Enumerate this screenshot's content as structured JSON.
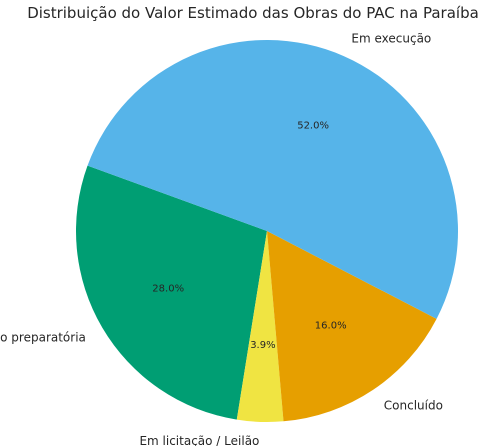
{
  "chart_data": {
    "type": "pie",
    "title": "Distribuição do Valor Estimado das Obras do PAC na Paraíba",
    "start_angle_deg": 160,
    "direction": "counterclockwise",
    "slices": [
      {
        "label": "Em ação preparatória",
        "value": 28.0,
        "pct_label": "28.0%",
        "color": "#009E73"
      },
      {
        "label": "Em licitação / Leilão",
        "value": 3.9,
        "pct_label": "3.9%",
        "color": "#F0E442"
      },
      {
        "label": "Concluído",
        "value": 16.0,
        "pct_label": "16.0%",
        "color": "#E69F00"
      },
      {
        "label": "Em execução",
        "value": 52.0,
        "pct_label": "52.0%",
        "color": "#56B4E9"
      }
    ]
  }
}
